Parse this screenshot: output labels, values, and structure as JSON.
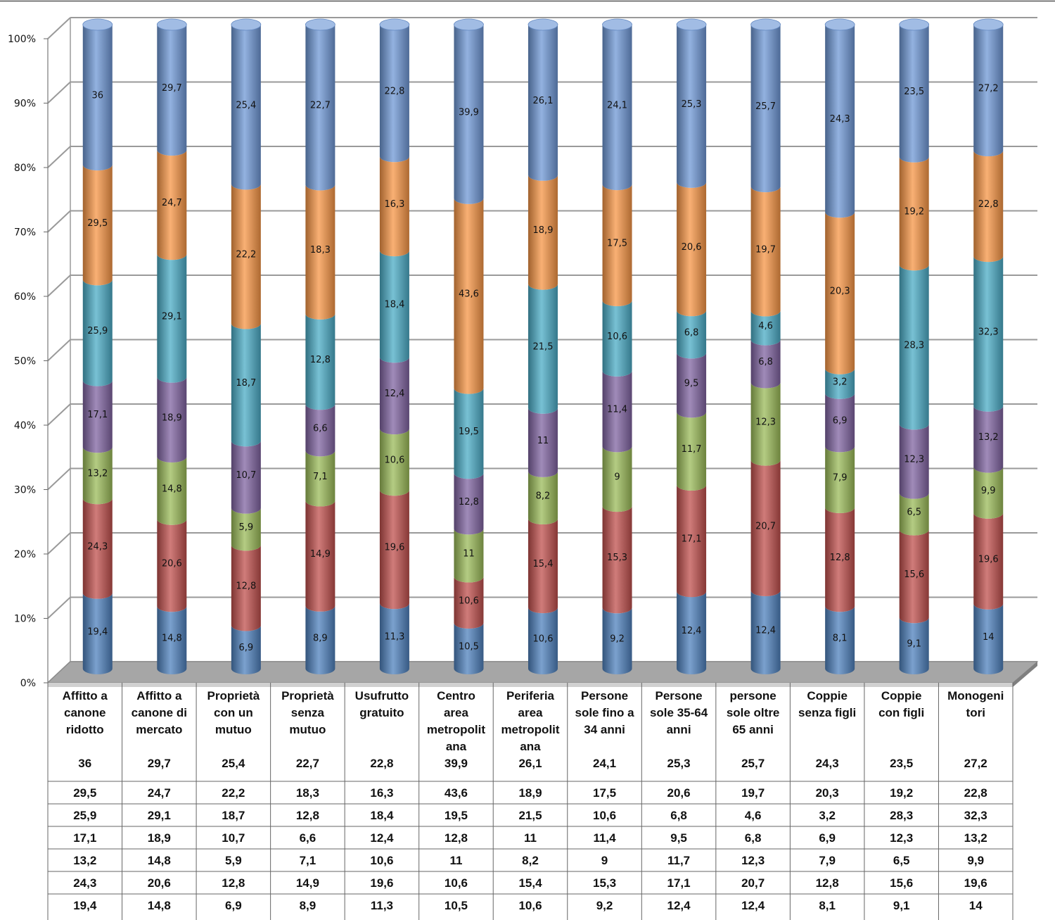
{
  "chart_data": {
    "type": "bar",
    "stacked": true,
    "normalized_100": true,
    "ylim": [
      0,
      100
    ],
    "yticks": [
      "0%",
      "10%",
      "20%",
      "30%",
      "40%",
      "50%",
      "60%",
      "70%",
      "80%",
      "90%",
      "100%"
    ],
    "grid": true,
    "categories": [
      "Affitto a canone ridotto",
      "Affitto a canone di mercato",
      "Proprietà con un mutuo",
      "Proprietà senza mutuo",
      "Usufrutto gratuito",
      "Centro area metropolitana",
      "Periferia area metropolitana",
      "Persone sole fino a 34 anni",
      "Persone sole 35-64 anni",
      "persone sole oltre 65 anni",
      "Coppie senza figli",
      "Coppie con figli",
      "Monogenitori"
    ],
    "category_lines": [
      [
        "Affitto a",
        "canone",
        "ridotto"
      ],
      [
        "Affitto a",
        "canone di",
        "mercato"
      ],
      [
        "Proprietà",
        "con un",
        "mutuo"
      ],
      [
        "Proprietà",
        "senza",
        "mutuo"
      ],
      [
        "Usufrutto",
        "gratuito"
      ],
      [
        "Centro",
        "area",
        "metropolit",
        "ana"
      ],
      [
        "Periferia",
        "area",
        "metropolit",
        "ana"
      ],
      [
        "Persone",
        "sole fino a",
        "34 anni"
      ],
      [
        "Persone",
        "sole 35-64",
        "anni"
      ],
      [
        "persone",
        "sole oltre",
        "65 anni"
      ],
      [
        "Coppie",
        "senza figli"
      ],
      [
        "Coppie",
        "con figli"
      ],
      [
        "Monogeni",
        "tori"
      ]
    ],
    "series": [
      {
        "color": "#4f81bd",
        "values": [
          "19,4",
          "14,8",
          "6,9",
          "8,9",
          "11,3",
          "10,5",
          "10,6",
          "9,2",
          "12,4",
          "12,4",
          "8,1",
          "9,1",
          "14"
        ]
      },
      {
        "color": "#c0504d",
        "values": [
          "24,3",
          "20,6",
          "12,8",
          "14,9",
          "19,6",
          "10,6",
          "15,4",
          "15,3",
          "17,1",
          "20,7",
          "12,8",
          "15,6",
          "19,6"
        ]
      },
      {
        "color": "#9bbb59",
        "values": [
          "13,2",
          "14,8",
          "5,9",
          "7,1",
          "10,6",
          "11",
          "8,2",
          "9",
          "11,7",
          "12,3",
          "7,9",
          "6,5",
          "9,9"
        ]
      },
      {
        "color": "#8064a2",
        "values": [
          "17,1",
          "18,9",
          "10,7",
          "6,6",
          "12,4",
          "12,8",
          "11",
          "11,4",
          "9,5",
          "6,8",
          "6,9",
          "12,3",
          "13,2"
        ]
      },
      {
        "color": "#4bacc6",
        "values": [
          "25,9",
          "29,1",
          "18,7",
          "12,8",
          "18,4",
          "19,5",
          "21,5",
          "10,6",
          "6,8",
          "4,6",
          "3,2",
          "28,3",
          "32,3"
        ]
      },
      {
        "color": "#f79646",
        "values": [
          "29,5",
          "24,7",
          "22,2",
          "18,3",
          "16,3",
          "43,6",
          "18,9",
          "17,5",
          "20,6",
          "19,7",
          "20,3",
          "19,2",
          "22,8"
        ]
      },
      {
        "color": "#6f98d6",
        "values": [
          "36",
          "29,7",
          "25,4",
          "22,7",
          "22,8",
          "39,9",
          "26,1",
          "24,1",
          "25,3",
          "25,7",
          "24,3",
          "23,5",
          "27,2"
        ]
      }
    ]
  }
}
